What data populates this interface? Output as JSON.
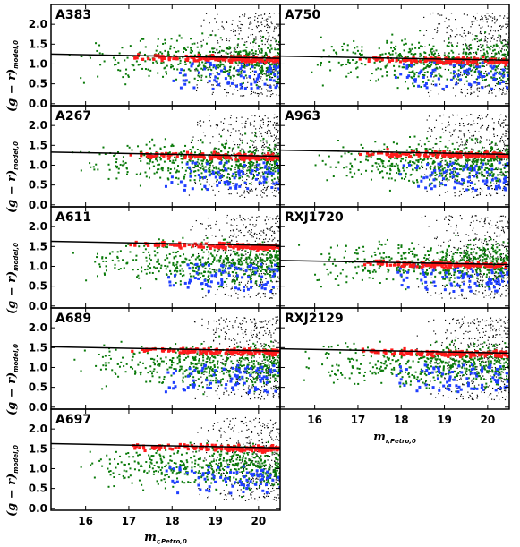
{
  "figure": {
    "ylabel_main": "(g − r)",
    "ylabel_sub": "model,0",
    "xlabel_main": "m",
    "xlabel_sub": "r,Petro,0"
  },
  "chart_data": [
    {
      "type": "scatter",
      "title": "A383",
      "xlim": [
        15.2,
        20.5
      ],
      "ylim": [
        -0.05,
        2.5
      ],
      "yticks": [
        "0.0",
        "0.5",
        "1.0",
        "1.5",
        "2.0"
      ],
      "xticks": [],
      "cmr": {
        "slope": -0.02,
        "intercept_at_15_2": 1.25
      }
    },
    {
      "type": "scatter",
      "title": "A750",
      "xlim": [
        15.2,
        20.5
      ],
      "ylim": [
        -0.05,
        2.5
      ],
      "yticks": [],
      "xticks": [],
      "cmr": {
        "slope": -0.02,
        "intercept_at_15_2": 1.2
      }
    },
    {
      "type": "scatter",
      "title": "A267",
      "xlim": [
        15.2,
        20.5
      ],
      "ylim": [
        -0.05,
        2.5
      ],
      "yticks": [
        "0.0",
        "0.5",
        "1.0",
        "1.5",
        "2.0"
      ],
      "xticks": [],
      "cmr": {
        "slope": -0.02,
        "intercept_at_15_2": 1.33
      }
    },
    {
      "type": "scatter",
      "title": "A963",
      "xlim": [
        15.2,
        20.5
      ],
      "ylim": [
        -0.05,
        2.5
      ],
      "yticks": [],
      "xticks": [],
      "cmr": {
        "slope": -0.02,
        "intercept_at_15_2": 1.38
      }
    },
    {
      "type": "scatter",
      "title": "A611",
      "xlim": [
        15.2,
        20.5
      ],
      "ylim": [
        -0.05,
        2.5
      ],
      "yticks": [
        "0.0",
        "0.5",
        "1.0",
        "1.5",
        "2.0"
      ],
      "xticks": [],
      "cmr": {
        "slope": -0.02,
        "intercept_at_15_2": 1.63
      }
    },
    {
      "type": "scatter",
      "title": "RXJ1720",
      "xlim": [
        15.2,
        20.5
      ],
      "ylim": [
        -0.05,
        2.5
      ],
      "yticks": [],
      "xticks": [],
      "cmr": {
        "slope": -0.02,
        "intercept_at_15_2": 1.15
      }
    },
    {
      "type": "scatter",
      "title": "A689",
      "xlim": [
        15.2,
        20.5
      ],
      "ylim": [
        -0.05,
        2.5
      ],
      "yticks": [
        "0.0",
        "0.5",
        "1.0",
        "1.5",
        "2.0"
      ],
      "xticks": [],
      "cmr": {
        "slope": -0.02,
        "intercept_at_15_2": 1.52
      }
    },
    {
      "type": "scatter",
      "title": "RXJ2129",
      "xlim": [
        15.2,
        20.5
      ],
      "ylim": [
        -0.05,
        2.5
      ],
      "yticks": [],
      "xticks": [
        "16",
        "17",
        "18",
        "19",
        "20"
      ],
      "cmr": {
        "slope": -0.02,
        "intercept_at_15_2": 1.47
      }
    },
    {
      "type": "scatter",
      "title": "A697",
      "xlim": [
        15.2,
        20.5
      ],
      "ylim": [
        -0.05,
        2.5
      ],
      "yticks": [
        "0.0",
        "0.5",
        "1.0",
        "1.5",
        "2.0"
      ],
      "xticks": [
        "16",
        "17",
        "18",
        "19",
        "20"
      ],
      "cmr": {
        "slope": -0.02,
        "intercept_at_15_2": 1.63
      }
    }
  ],
  "colors": {
    "field": "#000000",
    "green": "#0a7a0a",
    "red": "#ff1a1a",
    "blue": "#1f3fff"
  }
}
